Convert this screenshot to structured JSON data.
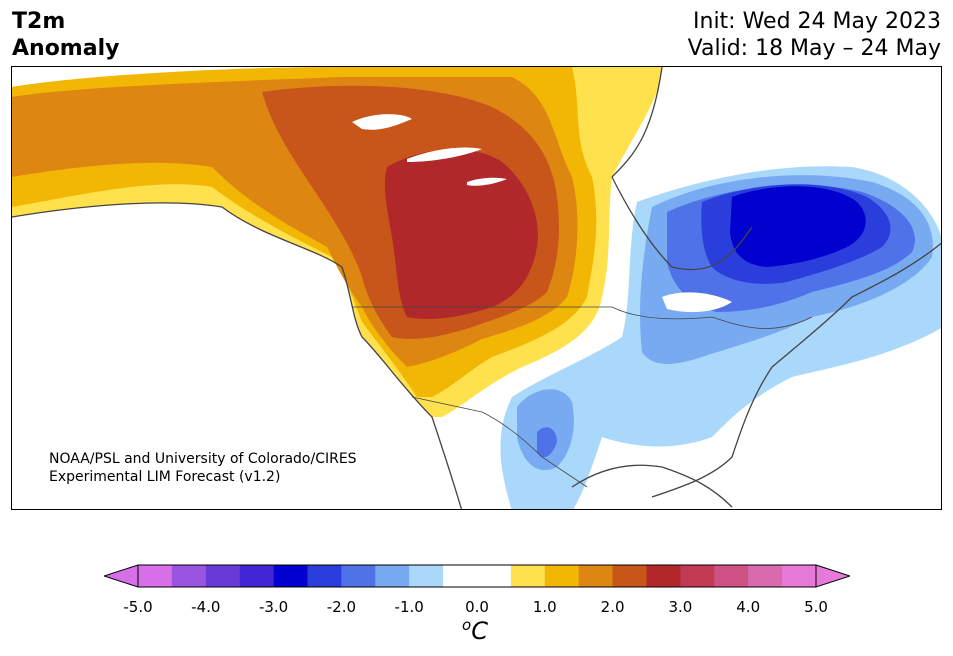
{
  "title": {
    "line1": "T2m",
    "line2": "Anomaly"
  },
  "header_right": {
    "init": "Init: Wed 24 May 2023",
    "valid": "Valid: 18 May – 24 May"
  },
  "credit": {
    "line1": "NOAA/PSL and University of Colorado/CIRES",
    "line2": "Experimental LIM Forecast (v1.2)"
  },
  "colorbar": {
    "unit_base": "C",
    "unit_sup": "o",
    "tick_labels": [
      "-5.0",
      "-4.0",
      "-3.0",
      "-2.0",
      "-1.0",
      "0.0",
      "1.0",
      "2.0",
      "3.0",
      "4.0",
      "5.0"
    ],
    "colors": [
      "#d66fe8",
      "#9a55e0",
      "#6a3ad8",
      "#3f27d4",
      "#0000cf",
      "#2a3edc",
      "#4f72e8",
      "#78aaf2",
      "#aad8fb",
      "#ffffff",
      "#ffffff",
      "#ffe14d",
      "#f2b705",
      "#dd8611",
      "#c8561a",
      "#b0282a",
      "#c23a53",
      "#ce5384",
      "#d96aae",
      "#e77ad9"
    ],
    "extend_low_color": "#d66fe8",
    "extend_high_color": "#e77ad9"
  },
  "map": {
    "region": "North America",
    "anomaly_areas": [
      {
        "label": "warm anomaly",
        "value": "+3.0",
        "color": "#b0282a"
      },
      {
        "label": "cold anomaly",
        "value": "-3.0",
        "color": "#0000cf"
      }
    ]
  }
}
